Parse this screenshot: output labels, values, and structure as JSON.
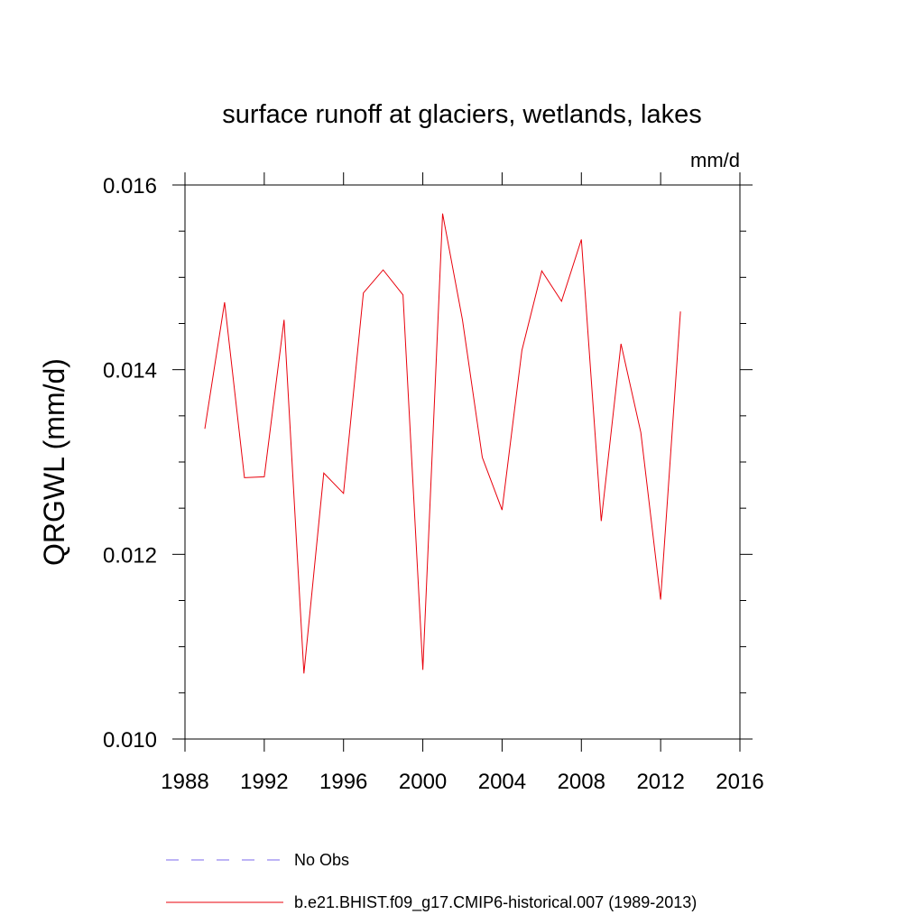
{
  "chart_data": {
    "type": "line",
    "title": "surface runoff at glaciers, wetlands, lakes",
    "units_label": "mm/d",
    "ylabel": "QRGWL  (mm/d)",
    "xlabel": "",
    "xlim": [
      1988,
      2016
    ],
    "ylim": [
      0.01,
      0.016
    ],
    "x_ticks": [
      "1988",
      "1992",
      "1996",
      "2000",
      "2004",
      "2008",
      "2012",
      "2016"
    ],
    "y_ticks": [
      "0.010",
      "0.012",
      "0.014",
      "0.016"
    ],
    "grid": false,
    "legend_position": "bottom",
    "colors": {
      "model": "#e8000b",
      "obs": "#7b68ee"
    },
    "legend": [
      {
        "label": "No Obs",
        "style": "dashed",
        "color": "#7b68ee"
      },
      {
        "label": "b.e21.BHIST.f09_g17.CMIP6-historical.007 (1989-2013)",
        "style": "solid",
        "color": "#e8000b"
      }
    ],
    "series": [
      {
        "x": [
          1989,
          1990,
          1991,
          1992,
          1993,
          1994,
          1995,
          1996,
          1997,
          1998,
          1999,
          2000,
          2001,
          2002,
          2003,
          2004,
          2005,
          2006,
          2007,
          2008,
          2009,
          2010,
          2011,
          2012,
          2013
        ],
        "values": [
          0.01336,
          0.01473,
          0.01283,
          0.01284,
          0.01454,
          0.01071,
          0.01288,
          0.01266,
          0.01483,
          0.01508,
          0.01481,
          0.01075,
          0.01569,
          0.01454,
          0.01305,
          0.01248,
          0.01421,
          0.01507,
          0.01474,
          0.01541,
          0.01236,
          0.01428,
          0.01332,
          0.01151,
          0.01463
        ]
      }
    ]
  }
}
